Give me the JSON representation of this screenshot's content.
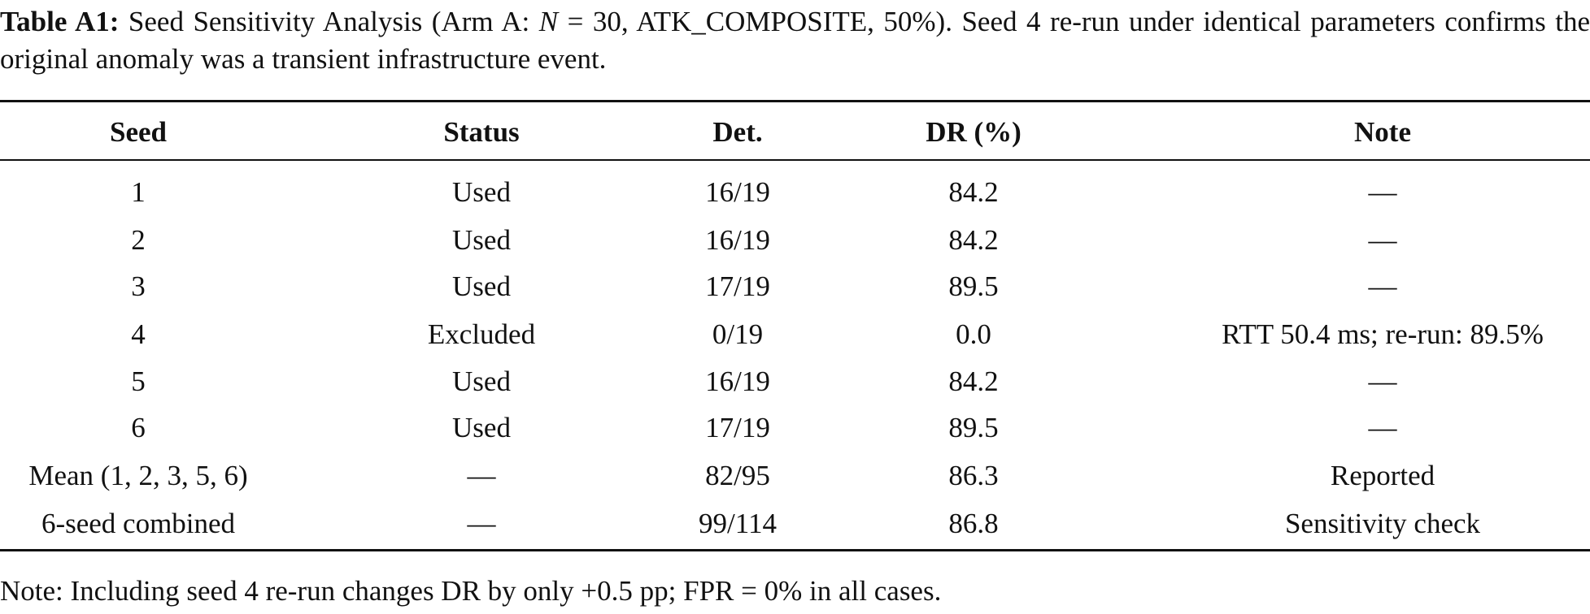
{
  "caption": {
    "label": "Table A1:",
    "text_before": "Seed Sensitivity Analysis (Arm A: ",
    "italic": "N",
    "text_after": " = 30, ATK_COMPOSITE, 50%). Seed 4 re-run under identical parameters confirms the original anomaly was a transient infrastructure event."
  },
  "table": {
    "header": [
      "Seed",
      "Status",
      "Det.",
      "DR (%)",
      "Note"
    ],
    "rows": [
      [
        "1",
        "Used",
        "16/19",
        "84.2",
        "—"
      ],
      [
        "2",
        "Used",
        "16/19",
        "84.2",
        "—"
      ],
      [
        "3",
        "Used",
        "17/19",
        "89.5",
        "—"
      ],
      [
        "4",
        "Excluded",
        "0/19",
        "0.0",
        "RTT 50.4 ms; re-run: 89.5%"
      ],
      [
        "5",
        "Used",
        "16/19",
        "84.2",
        "—"
      ],
      [
        "6",
        "Used",
        "17/19",
        "89.5",
        "—"
      ],
      [
        "Mean (1, 2, 3, 5, 6)",
        "—",
        "82/95",
        "86.3",
        "Reported"
      ],
      [
        "6-seed combined",
        "—",
        "99/114",
        "86.8",
        "Sensitivity check"
      ]
    ]
  },
  "note": "Note: Including seed 4 re-run changes DR by only +0.5 pp; FPR = 0% in all cases."
}
